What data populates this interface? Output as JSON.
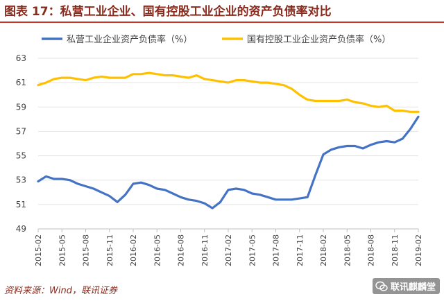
{
  "title": "图表 17：私营工业企业、国有控股工业企业的资产负债率对比",
  "source": "资料来源：Wind，联讯证券",
  "watermark": "联讯麒麟堂",
  "chart_data": {
    "type": "line",
    "ylim": [
      49,
      63
    ],
    "yticks": [
      49,
      51,
      53,
      55,
      57,
      59,
      61,
      63
    ],
    "xtick_labels": [
      "2015-02",
      "2015-05",
      "2015-08",
      "2015-11",
      "2016-02",
      "2016-05",
      "2016-08",
      "2016-11",
      "2017-02",
      "2017-05",
      "2017-08",
      "2017-11",
      "2018-02",
      "2018-05",
      "2018-08",
      "2018-11",
      "2019-02"
    ],
    "grid": "horizontal",
    "legend_position": "top",
    "x": [
      "2015-02",
      "2015-03",
      "2015-04",
      "2015-05",
      "2015-06",
      "2015-07",
      "2015-08",
      "2015-09",
      "2015-10",
      "2015-11",
      "2015-12",
      "2016-01",
      "2016-02",
      "2016-03",
      "2016-04",
      "2016-05",
      "2016-06",
      "2016-07",
      "2016-08",
      "2016-09",
      "2016-10",
      "2016-11",
      "2016-12",
      "2017-01",
      "2017-02",
      "2017-03",
      "2017-04",
      "2017-05",
      "2017-06",
      "2017-07",
      "2017-08",
      "2017-09",
      "2017-10",
      "2017-11",
      "2017-12",
      "2018-01",
      "2018-02",
      "2018-03",
      "2018-04",
      "2018-05",
      "2018-06",
      "2018-07",
      "2018-08",
      "2018-09",
      "2018-10",
      "2018-11",
      "2018-12",
      "2019-01",
      "2019-02"
    ],
    "series": [
      {
        "name": "私营工业企业资产负债率（%）",
        "color": "#4472c4",
        "values": [
          52.9,
          53.3,
          53.1,
          53.1,
          53.0,
          52.7,
          52.5,
          52.3,
          52.0,
          51.7,
          51.2,
          51.8,
          52.7,
          52.8,
          52.6,
          52.3,
          52.2,
          51.9,
          51.6,
          51.4,
          51.3,
          51.1,
          50.7,
          51.2,
          52.2,
          52.3,
          52.2,
          51.9,
          51.8,
          51.6,
          51.4,
          51.4,
          51.4,
          51.5,
          51.6,
          53.4,
          55.1,
          55.5,
          55.7,
          55.8,
          55.8,
          55.6,
          55.9,
          56.1,
          56.2,
          56.1,
          56.4,
          57.2,
          58.2
        ]
      },
      {
        "name": "国有控股工业企业资产负债率（%）",
        "color": "#ffc000",
        "values": [
          60.8,
          61.0,
          61.3,
          61.4,
          61.4,
          61.3,
          61.2,
          61.4,
          61.5,
          61.4,
          61.4,
          61.4,
          61.7,
          61.7,
          61.8,
          61.7,
          61.6,
          61.6,
          61.5,
          61.4,
          61.6,
          61.3,
          61.2,
          61.1,
          61.0,
          61.2,
          61.2,
          61.1,
          61.0,
          61.0,
          60.9,
          60.8,
          60.5,
          60.0,
          59.6,
          59.5,
          59.5,
          59.5,
          59.5,
          59.6,
          59.4,
          59.3,
          59.1,
          59.0,
          59.1,
          58.7,
          58.7,
          58.6,
          58.6
        ]
      }
    ]
  }
}
